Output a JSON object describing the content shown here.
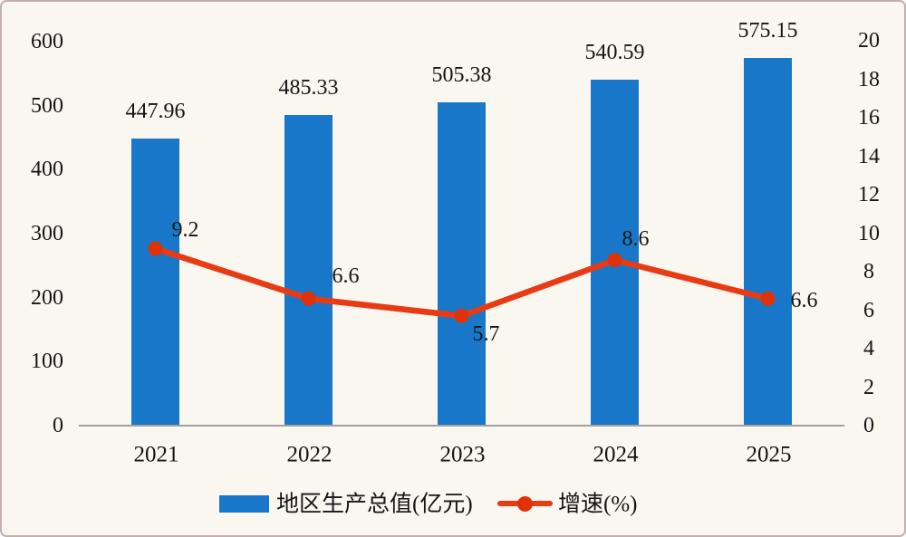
{
  "chart_data": {
    "type": "bar",
    "subtype": "bar+line dual-axis",
    "categories": [
      "2021",
      "2022",
      "2023",
      "2024",
      "2025"
    ],
    "series": [
      {
        "name": "地区生产总值(亿元)",
        "type": "bar",
        "axis": "left",
        "values": [
          447.96,
          485.33,
          505.38,
          540.59,
          575.15
        ],
        "labels": [
          "447.96",
          "485.33",
          "505.38",
          "540.59",
          "575.15"
        ]
      },
      {
        "name": "增速(%)",
        "type": "line",
        "axis": "right",
        "values": [
          9.2,
          6.6,
          5.7,
          8.6,
          6.6
        ],
        "labels": [
          "9.2",
          "6.6",
          "5.7",
          "8.6",
          "6.6"
        ],
        "label_offsets": [
          [
            33,
            -21
          ],
          [
            41,
            -25
          ],
          [
            27,
            20
          ],
          [
            23,
            -23
          ],
          [
            40,
            2
          ]
        ]
      }
    ],
    "title": "",
    "xlabel": "",
    "ylabel_left": "",
    "ylabel_right": "",
    "left_axis": {
      "min": 0,
      "max": 600,
      "step": 100,
      "ticks": [
        "0",
        "100",
        "200",
        "300",
        "400",
        "500",
        "600"
      ]
    },
    "right_axis": {
      "min": 0,
      "max": 20,
      "step": 2,
      "ticks": [
        "0",
        "2",
        "4",
        "6",
        "8",
        "10",
        "12",
        "14",
        "16",
        "18",
        "20"
      ]
    },
    "grid": false,
    "legend_position": "bottom",
    "legend": [
      {
        "label": "地区生产总值(亿元)",
        "swatch": "bar"
      },
      {
        "label": "增速(%)",
        "swatch": "line"
      }
    ],
    "colors": {
      "bar": "#1877C8",
      "line": "#E83B14",
      "marker": "#E03209",
      "axis_line": "#A3A09D",
      "text": "#161616",
      "background": "#FAF6F0",
      "border": "#C3B0AE"
    }
  }
}
